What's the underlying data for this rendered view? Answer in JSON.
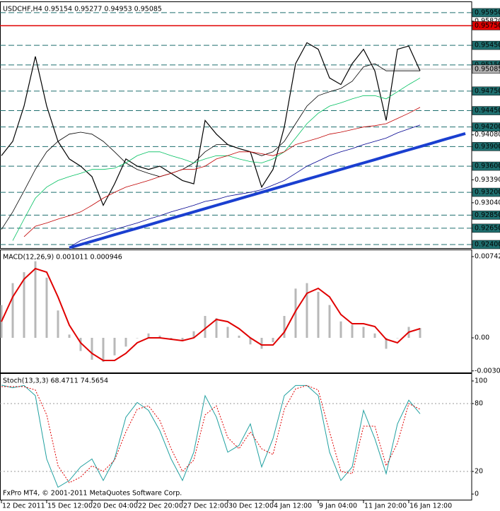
{
  "chart_data": [
    {
      "type": "line",
      "title": "USDCHF,H4  0.95154 0.95277 0.94953 0.95085",
      "categories": [
        "12 Dec 2011",
        null,
        null,
        null,
        "15 Dec 12:00",
        null,
        null,
        null,
        "20 Dec 04:00",
        null,
        null,
        null,
        "22 Dec 20:00",
        null,
        null,
        null,
        "27 Dec 12:00",
        null,
        null,
        null,
        "30 Dec 12:00",
        null,
        null,
        null,
        "4 Jan 12:00",
        null,
        null,
        null,
        "9 Jan 04:00",
        null,
        null,
        null,
        "11 Jan 20:00",
        null,
        null,
        null,
        "16 Jan 12:00",
        null,
        null,
        null,
        null,
        null
      ],
      "series": [
        {
          "color": "#000000",
          "width": 1.2,
          "values": [
            0.9376,
            0.9398,
            0.9452,
            0.9528,
            0.9452,
            0.9398,
            0.9371,
            0.936,
            0.9344,
            0.93,
            0.9333,
            0.9371,
            0.936,
            0.9355,
            0.936,
            0.9349,
            0.9338,
            0.9333,
            0.943,
            0.9409,
            0.9393,
            0.9387,
            0.9382,
            0.9328,
            0.9355,
            0.942,
            0.9517,
            0.9549,
            0.9539,
            0.9495,
            0.9485,
            0.9517,
            0.9539,
            0.9506,
            0.943,
            0.9539,
            0.9544,
            0.9506,
            null,
            null,
            null,
            null
          ]
        },
        {
          "color": "#000000",
          "width": 0.8,
          "values": [
            0.9263,
            0.929,
            0.9322,
            0.9355,
            0.9382,
            0.9398,
            0.9409,
            0.9412,
            0.9409,
            0.9398,
            0.9382,
            0.9365,
            0.9355,
            0.9349,
            0.9344,
            0.9349,
            0.9355,
            0.9365,
            0.9382,
            0.9393,
            0.9393,
            0.9387,
            0.9382,
            0.9376,
            0.9382,
            0.9398,
            0.9425,
            0.9452,
            0.9468,
            0.9474,
            0.9479,
            0.949,
            0.9512,
            0.9517,
            0.9506,
            0.9506,
            0.9506,
            0.9506,
            null,
            null,
            null,
            null
          ]
        },
        {
          "color": "#00c060",
          "width": 0.8,
          "values": [
            null,
            0.9246,
            0.9279,
            0.9311,
            0.9328,
            0.9338,
            0.9344,
            0.9349,
            0.9355,
            0.9355,
            0.9357,
            0.9365,
            0.9376,
            0.9382,
            0.9382,
            0.9376,
            0.9371,
            0.9365,
            0.9371,
            0.9376,
            0.9376,
            0.9371,
            0.9367,
            0.9365,
            0.9371,
            0.9382,
            0.9403,
            0.9425,
            0.9441,
            0.9452,
            0.9457,
            0.9463,
            0.9468,
            0.9468,
            0.9463,
            0.9474,
            0.9485,
            0.9495,
            null,
            null,
            null,
            null
          ]
        },
        {
          "color": "#c00000",
          "width": 0.8,
          "values": [
            null,
            null,
            0.9252,
            0.9268,
            0.9273,
            0.9279,
            0.9284,
            0.929,
            0.93,
            0.9311,
            0.932,
            0.9328,
            0.9333,
            0.9338,
            0.9344,
            0.9349,
            0.9355,
            0.9355,
            0.936,
            0.9371,
            0.9376,
            0.9382,
            0.9382,
            0.9379,
            0.9376,
            0.9382,
            0.9393,
            0.9398,
            0.9403,
            0.9409,
            0.9412,
            0.9416,
            0.942,
            0.9422,
            0.9425,
            0.9433,
            0.9441,
            0.945,
            null,
            null,
            null,
            null
          ]
        },
        {
          "color": "#000090",
          "width": 0.8,
          "values": [
            null,
            null,
            null,
            null,
            null,
            null,
            0.9236,
            0.9246,
            0.9252,
            0.9257,
            0.9263,
            0.9268,
            0.9273,
            0.9279,
            0.9284,
            0.929,
            0.9295,
            0.93,
            0.9306,
            0.9309,
            0.9314,
            0.9317,
            0.932,
            0.9324,
            0.9331,
            0.9338,
            0.9349,
            0.936,
            0.9368,
            0.9376,
            0.9382,
            0.9387,
            0.9393,
            0.9398,
            0.9403,
            0.9411,
            0.9417,
            0.9423,
            null,
            null,
            null,
            null
          ]
        },
        {
          "color": "#1a3fd0",
          "width": 4,
          "values": [
            null,
            null,
            null,
            null,
            null,
            null,
            0.9235,
            0.924,
            0.9245,
            0.925,
            0.9255,
            0.926,
            0.9265,
            0.927,
            0.9275,
            0.928,
            0.9285,
            0.929,
            0.9295,
            0.93,
            0.9305,
            0.931,
            0.9315,
            0.932,
            0.9325,
            0.933,
            0.9335,
            0.934,
            0.9345,
            0.935,
            0.9355,
            0.936,
            0.9365,
            0.937,
            0.9375,
            0.938,
            0.9385,
            0.939,
            0.9395,
            0.94,
            0.9405,
            0.941
          ]
        }
      ],
      "ylim": [
        0.92335,
        0.9609
      ],
      "yticks": [
        {
          "value": 0.9595,
          "label": "0.95950"
        },
        {
          "value": 0.9582,
          "label": "0.95820"
        },
        {
          "value": 0.9575,
          "label": "0.95750"
        },
        {
          "value": 0.9545,
          "label": "0.95450"
        },
        {
          "value": 0.9515,
          "label": "0.95150"
        },
        {
          "value": 0.95085,
          "label": "0.95085"
        },
        {
          "value": 0.9475,
          "label": "0.94750"
        },
        {
          "value": 0.9445,
          "label": "0.94450"
        },
        {
          "value": 0.942,
          "label": "0.94200"
        },
        {
          "value": 0.9408,
          "label": "0.94080"
        },
        {
          "value": 0.939,
          "label": "0.93900"
        },
        {
          "value": 0.936,
          "label": "0.93600"
        },
        {
          "value": 0.9339,
          "label": "0.93390"
        },
        {
          "value": 0.932,
          "label": "0.93200"
        },
        {
          "value": 0.9304,
          "label": "0.93040"
        },
        {
          "value": 0.9285,
          "label": "0.92850"
        },
        {
          "value": 0.9265,
          "label": "0.92650"
        },
        {
          "value": 0.924,
          "label": "0.92400"
        }
      ],
      "hlines": {
        "color": "#1f6f6f",
        "values": [
          0.9595,
          0.9545,
          0.9515,
          0.9475,
          0.9445,
          0.942,
          0.939,
          0.936,
          0.932,
          0.9285,
          0.9265,
          0.924
        ]
      },
      "resistance": {
        "color": "#e00000",
        "value": 0.9575
      },
      "price_line": {
        "color": "#b0b0b0",
        "value": 0.95085
      }
    },
    {
      "type": "macd",
      "title": "MACD(12,26,9) 0.001011 0.000946",
      "series": [
        {
          "color": "#b8b8b8",
          "values": [
            0.003,
            0.005,
            0.006,
            0.007,
            0.0055,
            0.0025,
            0.0003,
            -0.0012,
            -0.002,
            -0.0022,
            -0.0016,
            -0.0008,
            0.0,
            0.0004,
            0.0002,
            -0.0002,
            -0.0003,
            0.0006,
            0.002,
            0.0018,
            0.001,
            0.0002,
            -0.0006,
            -0.001,
            -0.0004,
            0.002,
            0.0045,
            0.005,
            0.0042,
            0.003,
            0.0015,
            0.0012,
            0.001,
            0.0004,
            -0.001,
            0.0,
            0.001,
            0.0009
          ]
        },
        {
          "color": "#e00000",
          "values": [
            0.00148,
            0.00374,
            0.00536,
            0.00633,
            0.006,
            0.00374,
            0.00116,
            -0.00045,
            -0.00142,
            -0.00207,
            -0.00207,
            -0.00142,
            -0.00045,
            0.0,
            0.0,
            -0.00013,
            -0.00026,
            0.0,
            0.00084,
            0.00168,
            0.00148,
            0.00084,
            0.0,
            -0.00065,
            -0.00065,
            0.00052,
            0.00245,
            0.00407,
            0.00452,
            0.00374,
            0.00213,
            0.00129,
            0.00129,
            0.00103,
            -0.00013,
            -0.00045,
            0.00052,
            0.00084
          ]
        }
      ],
      "ylim": [
        -0.00323,
        0.00788
      ],
      "yticks": [
        0.007424,
        {
          "value": 0,
          "label": "0.00"
        },
        -0.003021
      ]
    },
    {
      "type": "line",
      "title": "Stoch(13,3,3) 68.4711 74.5654",
      "series": [
        {
          "color": "#20a0a0",
          "width": 1,
          "values": [
            96.3,
            94,
            96,
            87,
            31,
            6,
            12,
            24,
            31,
            12,
            31,
            68,
            81,
            74,
            56,
            31,
            12,
            37,
            87,
            68,
            37,
            43,
            62,
            24,
            49,
            87,
            96,
            96,
            87,
            37,
            12,
            24,
            74,
            49,
            18,
            62,
            83,
            71
          ]
        },
        {
          "color": "#e00000",
          "width": 1,
          "dash": "2,2",
          "values": [
            95,
            95,
            95,
            92,
            70,
            25,
            10,
            15,
            25,
            20,
            30,
            55,
            75,
            78,
            65,
            40,
            20,
            30,
            70,
            78,
            50,
            40,
            55,
            40,
            35,
            75,
            93,
            96,
            92,
            55,
            20,
            18,
            60,
            60,
            25,
            45,
            80,
            75
          ]
        }
      ],
      "ylim": [
        -5.6,
        105
      ],
      "yticks": [
        100,
        80,
        20,
        0
      ],
      "levels": [
        80,
        20
      ]
    }
  ],
  "footer": "FxPro MT4, © 2001-2011 MetaQuotes Software Corp."
}
